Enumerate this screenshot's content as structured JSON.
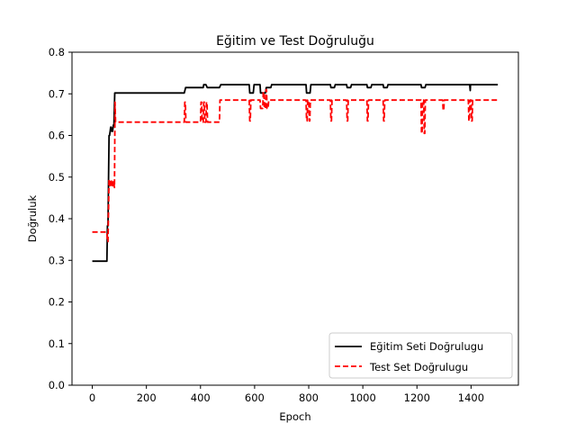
{
  "chart_data": {
    "type": "line",
    "title": "Eğitim ve Test Doğruluğu",
    "xlabel": "Epoch",
    "ylabel": "Doğruluk",
    "xlim": [
      -75,
      1575
    ],
    "ylim": [
      0.0,
      0.8
    ],
    "xticks": [
      0,
      200,
      400,
      600,
      800,
      1000,
      1200,
      1400
    ],
    "xtick_labels": [
      "0",
      "200",
      "400",
      "600",
      "800",
      "1000",
      "1200",
      "1400"
    ],
    "yticks": [
      0.0,
      0.1,
      0.2,
      0.3,
      0.4,
      0.5,
      0.6,
      0.7,
      0.8
    ],
    "ytick_labels": [
      "0.0",
      "0.1",
      "0.2",
      "0.3",
      "0.4",
      "0.5",
      "0.6",
      "0.7",
      "0.8"
    ],
    "grid": false,
    "legend_position": "lower-right",
    "series": [
      {
        "name": "Eğitim Seti Doğrulugu",
        "color": "#000000",
        "style": "solid",
        "x": [
          0,
          54,
          56,
          58,
          62,
          64,
          68,
          70,
          72,
          75,
          78,
          80,
          83,
          85,
          340,
          345,
          410,
          412,
          420,
          425,
          470,
          475,
          580,
          582,
          595,
          598,
          620,
          622,
          640,
          643,
          660,
          663,
          790,
          792,
          805,
          808,
          880,
          882,
          895,
          898,
          940,
          942,
          955,
          958,
          1015,
          1017,
          1030,
          1033,
          1075,
          1077,
          1090,
          1093,
          1215,
          1217,
          1230,
          1233,
          1395,
          1397,
          1398,
          1400,
          1499
        ],
        "y": [
          0.298,
          0.298,
          0.383,
          0.383,
          0.6,
          0.6,
          0.62,
          0.62,
          0.61,
          0.61,
          0.625,
          0.625,
          0.702,
          0.702,
          0.702,
          0.715,
          0.715,
          0.722,
          0.722,
          0.715,
          0.715,
          0.722,
          0.722,
          0.702,
          0.702,
          0.722,
          0.722,
          0.702,
          0.702,
          0.715,
          0.715,
          0.722,
          0.722,
          0.702,
          0.702,
          0.722,
          0.722,
          0.715,
          0.715,
          0.722,
          0.722,
          0.715,
          0.715,
          0.722,
          0.722,
          0.715,
          0.715,
          0.722,
          0.722,
          0.715,
          0.715,
          0.722,
          0.722,
          0.715,
          0.715,
          0.722,
          0.722,
          0.708,
          0.722,
          0.722,
          0.722
        ]
      },
      {
        "name": "Test Set Doğrulugu",
        "color": "#ff0000",
        "style": "dashed",
        "x": [
          0,
          54,
          56,
          58,
          62,
          66,
          70,
          74,
          78,
          82,
          84,
          86,
          88,
          340,
          342,
          344,
          346,
          400,
          402,
          404,
          406,
          410,
          412,
          414,
          416,
          420,
          422,
          424,
          426,
          470,
          472,
          580,
          582,
          584,
          586,
          620,
          622,
          630,
          632,
          634,
          636,
          640,
          642,
          644,
          646,
          650,
          652,
          660,
          662,
          790,
          792,
          794,
          796,
          800,
          802,
          804,
          806,
          880,
          882,
          884,
          886,
          900,
          902,
          940,
          942,
          944,
          946,
          950,
          952,
          1015,
          1017,
          1019,
          1021,
          1075,
          1077,
          1079,
          1081,
          1090,
          1092,
          1215,
          1217,
          1219,
          1221,
          1225,
          1227,
          1229,
          1231,
          1295,
          1297,
          1299,
          1301,
          1310,
          1312,
          1390,
          1392,
          1394,
          1396,
          1400,
          1402,
          1404,
          1406,
          1499
        ],
        "y": [
          0.368,
          0.368,
          0.345,
          0.345,
          0.495,
          0.475,
          0.495,
          0.475,
          0.492,
          0.475,
          0.68,
          0.632,
          0.632,
          0.632,
          0.68,
          0.68,
          0.632,
          0.632,
          0.68,
          0.68,
          0.632,
          0.632,
          0.68,
          0.68,
          0.632,
          0.632,
          0.68,
          0.68,
          0.632,
          0.632,
          0.685,
          0.685,
          0.635,
          0.635,
          0.685,
          0.685,
          0.665,
          0.665,
          0.705,
          0.705,
          0.665,
          0.665,
          0.71,
          0.71,
          0.665,
          0.665,
          0.685,
          0.685,
          0.685,
          0.685,
          0.635,
          0.635,
          0.685,
          0.685,
          0.635,
          0.635,
          0.685,
          0.685,
          0.635,
          0.635,
          0.685,
          0.685,
          0.685,
          0.685,
          0.635,
          0.635,
          0.685,
          0.685,
          0.685,
          0.685,
          0.635,
          0.635,
          0.685,
          0.685,
          0.635,
          0.635,
          0.685,
          0.685,
          0.685,
          0.685,
          0.605,
          0.605,
          0.685,
          0.685,
          0.605,
          0.605,
          0.685,
          0.685,
          0.66,
          0.66,
          0.685,
          0.685,
          0.685,
          0.685,
          0.635,
          0.635,
          0.685,
          0.685,
          0.635,
          0.635,
          0.685,
          0.685
        ]
      }
    ]
  }
}
